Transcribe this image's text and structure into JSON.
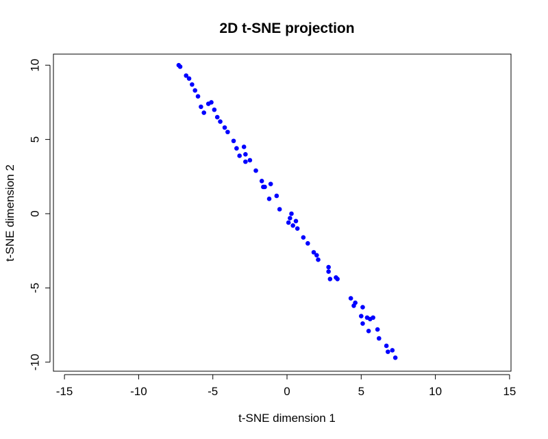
{
  "chart_data": {
    "type": "scatter",
    "title": "2D t-SNE projection",
    "xlabel": "t-SNE dimension 1",
    "ylabel": "t-SNE dimension 2",
    "xlim": [
      -15,
      15
    ],
    "ylim": [
      -10,
      10
    ],
    "x_ticks": [
      -15,
      -10,
      -5,
      0,
      5,
      10,
      15
    ],
    "y_ticks": [
      -10,
      -5,
      0,
      5,
      10
    ],
    "grid": false,
    "point_color": "#0000ff",
    "series": [
      {
        "x": [
          -7.3,
          -7.2,
          -6.8,
          -6.6,
          -6.4,
          -6.2,
          -6.0,
          -5.8,
          -5.6,
          -5.3,
          -5.1,
          -4.9,
          -4.7,
          -4.5,
          -4.2,
          -4.0,
          -3.6,
          -3.4,
          -3.2,
          -2.9,
          -2.8,
          -2.8,
          -2.5,
          -2.1,
          -1.7,
          -1.6,
          -1.5,
          -1.2,
          -1.1,
          -0.7,
          -0.5,
          0.1,
          0.2,
          0.3,
          0.4,
          0.6,
          0.7,
          1.1,
          1.4,
          1.8,
          2.0,
          2.1,
          2.8,
          2.8,
          2.9,
          3.3,
          3.4,
          4.3,
          4.5,
          4.6,
          5.0,
          5.1,
          5.1,
          5.4,
          5.5,
          5.6,
          5.8,
          6.1,
          6.2,
          6.7,
          6.8,
          7.1,
          7.3
        ],
        "y": [
          10.0,
          9.9,
          9.3,
          9.1,
          8.7,
          8.3,
          7.9,
          7.2,
          6.8,
          7.4,
          7.5,
          7.0,
          6.5,
          6.2,
          5.8,
          5.5,
          4.9,
          4.4,
          3.9,
          4.5,
          3.5,
          4.0,
          3.6,
          2.9,
          2.2,
          1.8,
          1.8,
          1.0,
          2.0,
          1.2,
          0.3,
          -0.6,
          -0.3,
          0.0,
          -0.8,
          -0.5,
          -1.0,
          -1.6,
          -2.0,
          -2.6,
          -2.8,
          -3.1,
          -3.6,
          -3.9,
          -4.4,
          -4.3,
          -4.4,
          -5.7,
          -6.2,
          -6.0,
          -6.9,
          -6.3,
          -7.4,
          -7.0,
          -7.9,
          -7.1,
          -7.0,
          -7.8,
          -8.4,
          -8.9,
          -9.3,
          -9.2,
          -9.7
        ]
      }
    ]
  }
}
